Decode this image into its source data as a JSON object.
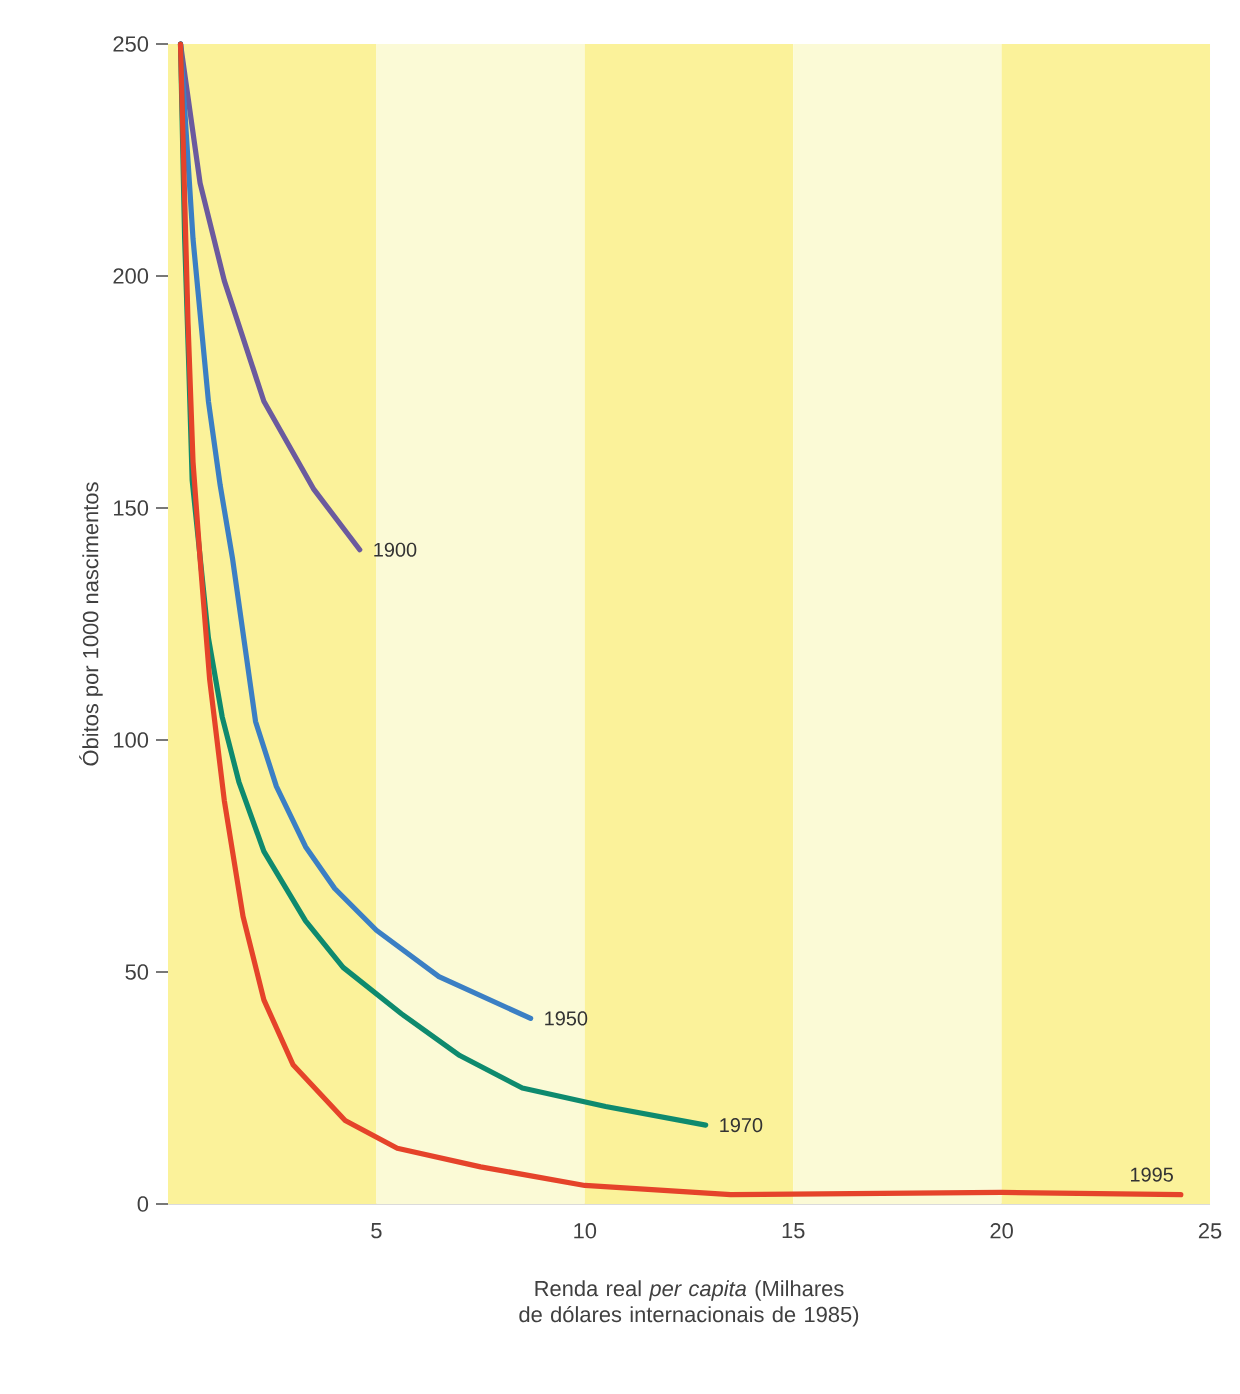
{
  "chart_data": {
    "type": "line",
    "xlabel": "Renda real *per capita* (Milhares de dólares internacionais de 1985)",
    "ylabel": "Óbitos por 1000 nascimentos",
    "xlim": [
      0,
      25
    ],
    "ylim": [
      0,
      250
    ],
    "xticks": [
      5,
      10,
      15,
      20,
      25
    ],
    "yticks": [
      0,
      50,
      100,
      150,
      200,
      250
    ],
    "grid": false,
    "legend": false,
    "line_style": "solid",
    "marker": "none",
    "bands": [
      {
        "axis": "x",
        "from": 0,
        "to": 5,
        "color": "#fbf29a"
      },
      {
        "axis": "x",
        "from": 5,
        "to": 10,
        "color": "#fbfad6"
      },
      {
        "axis": "x",
        "from": 10,
        "to": 15,
        "color": "#fbf29a"
      },
      {
        "axis": "x",
        "from": 15,
        "to": 20,
        "color": "#fbfad6"
      },
      {
        "axis": "x",
        "from": 20,
        "to": 25,
        "color": "#fbf29a"
      }
    ],
    "series": [
      {
        "name": "1900",
        "color": "#6b5a9e",
        "x": [
          0.3,
          0.77,
          1.35,
          2.3,
          3.5,
          4.6
        ],
        "values": [
          250,
          220,
          199,
          173,
          154,
          141
        ]
      },
      {
        "name": "1950",
        "color": "#3b7fc4",
        "x": [
          0.3,
          0.6,
          0.97,
          1.25,
          1.55,
          2.1,
          2.6,
          3.3,
          4.0,
          5.0,
          6.5,
          8.7
        ],
        "values": [
          250,
          208,
          173,
          155,
          139,
          104,
          90,
          77,
          68,
          59,
          49,
          40
        ]
      },
      {
        "name": "1970",
        "color": "#0e8a6e",
        "x": [
          0.3,
          0.4,
          0.5,
          0.58,
          0.97,
          1.3,
          1.7,
          2.3,
          3.3,
          4.2,
          5.6,
          7.0,
          8.5,
          10.5,
          12.9
        ],
        "values": [
          250,
          208,
          180,
          156,
          122,
          105,
          91,
          76,
          61,
          51,
          41,
          32,
          25,
          21,
          17
        ]
      },
      {
        "name": "1995",
        "color": "#e5432a",
        "x": [
          0.3,
          0.48,
          0.6,
          0.77,
          1.0,
          1.35,
          1.8,
          2.3,
          3.0,
          4.25,
          5.5,
          7.5,
          10.0,
          13.5,
          20,
          24.3
        ],
        "values": [
          250,
          190,
          160,
          139,
          113,
          87,
          62,
          44,
          30,
          18,
          12,
          8,
          4,
          2,
          2.5,
          2
        ]
      }
    ]
  }
}
